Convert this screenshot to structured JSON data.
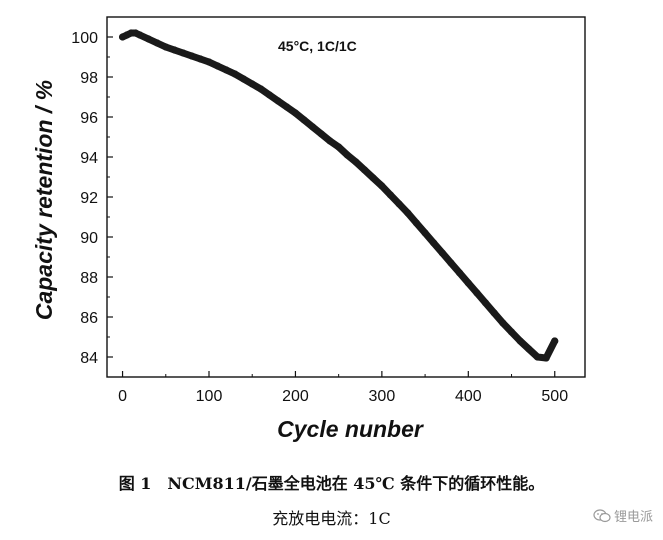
{
  "chart_data": {
    "type": "line",
    "xlabel": "Cycle nunber",
    "ylabel": "Capacity retention / %",
    "annotation": "45°C, 1C/1C",
    "xlim": [
      -18,
      535
    ],
    "ylim": [
      83,
      101
    ],
    "x_ticks": [
      0,
      100,
      200,
      300,
      400,
      500
    ],
    "y_ticks": [
      84,
      86,
      88,
      90,
      92,
      94,
      96,
      98,
      100
    ],
    "grid": false,
    "legend": "none",
    "line_color": "#1a1a1a",
    "series": [
      {
        "x": [
          0,
          5,
          10,
          15,
          20,
          30,
          40,
          50,
          60,
          70,
          80,
          90,
          100,
          110,
          120,
          130,
          140,
          150,
          160,
          170,
          180,
          190,
          200,
          210,
          220,
          230,
          240,
          250,
          260,
          270,
          280,
          290,
          300,
          310,
          320,
          330,
          340,
          350,
          360,
          370,
          380,
          390,
          400,
          410,
          420,
          430,
          440,
          450,
          460,
          470,
          480,
          490,
          500
        ],
        "y": [
          100.0,
          100.1,
          100.2,
          100.2,
          100.1,
          99.9,
          99.7,
          99.5,
          99.35,
          99.2,
          99.05,
          98.9,
          98.75,
          98.55,
          98.35,
          98.15,
          97.9,
          97.65,
          97.4,
          97.1,
          96.8,
          96.5,
          96.2,
          95.85,
          95.5,
          95.15,
          94.8,
          94.5,
          94.1,
          93.75,
          93.35,
          92.95,
          92.55,
          92.1,
          91.65,
          91.2,
          90.7,
          90.2,
          89.7,
          89.2,
          88.7,
          88.2,
          87.7,
          87.2,
          86.7,
          86.2,
          85.7,
          85.25,
          84.8,
          84.4,
          84.0,
          83.95,
          84.8
        ]
      }
    ]
  },
  "caption": {
    "line1": "图 1　NCM811/石墨全电池在 45℃ 条件下的循环性能。",
    "line2": "充放电电流：1C"
  },
  "watermark": {
    "text": "锂电派",
    "icon": "wechat-icon"
  }
}
